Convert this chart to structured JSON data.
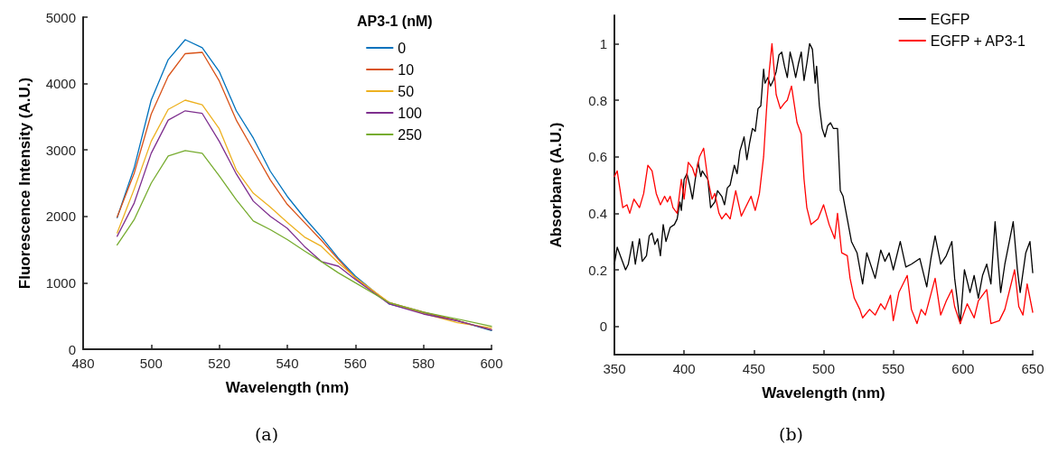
{
  "chart_data": [
    {
      "type": "line",
      "xlabel": "Wavelength (nm)",
      "ylabel": "Fluorescence Intensity (A.U.)",
      "legend_title": "AP3-1 (nM)",
      "annotations": [
        "(a)"
      ],
      "legend": "top right",
      "grid": false,
      "marker": "none",
      "line_style": "solid",
      "xlim": [
        480,
        600
      ],
      "xticks": [
        480,
        500,
        520,
        540,
        560,
        580,
        600
      ],
      "ylim": [
        0,
        5000
      ],
      "yticks": [
        0,
        1000,
        2000,
        3000,
        4000,
        5000
      ],
      "x": [
        490,
        495,
        500,
        505,
        510,
        515,
        520,
        525,
        530,
        535,
        540,
        545,
        550,
        555,
        560,
        570,
        580,
        590,
        600
      ],
      "series": [
        {
          "name": "0",
          "color": "#0072bd",
          "values": [
            1980,
            2730,
            3750,
            4360,
            4660,
            4540,
            4180,
            3590,
            3180,
            2680,
            2300,
            1980,
            1690,
            1370,
            1100,
            680,
            550,
            430,
            280
          ]
        },
        {
          "name": "10",
          "color": "#d95319",
          "values": [
            1990,
            2650,
            3540,
            4110,
            4450,
            4470,
            4040,
            3450,
            3000,
            2550,
            2180,
            1910,
            1640,
            1350,
            1070,
            700,
            560,
            430,
            290
          ]
        },
        {
          "name": "50",
          "color": "#edb120",
          "values": [
            1750,
            2410,
            3130,
            3610,
            3750,
            3680,
            3320,
            2700,
            2350,
            2140,
            1910,
            1690,
            1550,
            1300,
            1080,
            700,
            540,
            400,
            320
          ]
        },
        {
          "name": "100",
          "color": "#7e2f8e",
          "values": [
            1700,
            2200,
            2950,
            3450,
            3590,
            3550,
            3130,
            2640,
            2230,
            2000,
            1820,
            1550,
            1320,
            1250,
            1050,
            680,
            530,
            425,
            295
          ]
        },
        {
          "name": "250",
          "color": "#77ac30",
          "values": [
            1570,
            1950,
            2500,
            2910,
            2990,
            2950,
            2610,
            2250,
            1930,
            1800,
            1650,
            1480,
            1320,
            1150,
            1000,
            700,
            560,
            455,
            345
          ]
        }
      ]
    },
    {
      "type": "line",
      "xlabel": "Wavelength (nm)",
      "ylabel": "Absorbane (A.U.)",
      "annotations": [
        "(b)"
      ],
      "legend": "top right",
      "grid": false,
      "marker": "none",
      "line_style": "solid",
      "xlim": [
        350,
        650
      ],
      "xticks": [
        350,
        400,
        450,
        500,
        550,
        600,
        650
      ],
      "ylim": [
        -0.1,
        1.1
      ],
      "yticks": [
        0,
        0.2,
        0.4,
        0.6,
        0.8,
        1
      ],
      "series": [
        {
          "name": "EGFP",
          "color": "#000000",
          "x": [
            350,
            352,
            355,
            358,
            360,
            363,
            365,
            368,
            370,
            373,
            375,
            377,
            379,
            381,
            383,
            385,
            387,
            390,
            393,
            395,
            397,
            398,
            400,
            402,
            404,
            406,
            408,
            410,
            412,
            413,
            417,
            419,
            422,
            424,
            427,
            429,
            431,
            433,
            436,
            438,
            440,
            443,
            445,
            447,
            449,
            451,
            453,
            455,
            457,
            458,
            460,
            462,
            464,
            466,
            468,
            470,
            472,
            474,
            476,
            478,
            480,
            482,
            484,
            486,
            488,
            490,
            492,
            494,
            495,
            497,
            499,
            501,
            503,
            505,
            507,
            510,
            512,
            514,
            517,
            520,
            522,
            524,
            528,
            531,
            537,
            541,
            544,
            547,
            550,
            555,
            559,
            563,
            569,
            574,
            577,
            580,
            584,
            588,
            592,
            594,
            598,
            601,
            605,
            608,
            611,
            614,
            617,
            620,
            623,
            627,
            630,
            636,
            639,
            641,
            645,
            648,
            650
          ],
          "values": [
            0.22,
            0.28,
            0.24,
            0.2,
            0.22,
            0.3,
            0.22,
            0.31,
            0.23,
            0.25,
            0.32,
            0.33,
            0.29,
            0.31,
            0.25,
            0.36,
            0.3,
            0.35,
            0.36,
            0.38,
            0.44,
            0.41,
            0.52,
            0.54,
            0.5,
            0.45,
            0.52,
            0.58,
            0.53,
            0.55,
            0.52,
            0.42,
            0.44,
            0.48,
            0.46,
            0.43,
            0.49,
            0.5,
            0.57,
            0.54,
            0.62,
            0.67,
            0.59,
            0.65,
            0.7,
            0.69,
            0.77,
            0.78,
            0.91,
            0.86,
            0.88,
            0.85,
            0.87,
            0.9,
            0.96,
            0.97,
            0.92,
            0.88,
            0.97,
            0.93,
            0.88,
            0.93,
            0.97,
            0.87,
            0.93,
            1,
            0.98,
            0.86,
            0.92,
            0.78,
            0.7,
            0.67,
            0.71,
            0.72,
            0.7,
            0.7,
            0.48,
            0.46,
            0.38,
            0.3,
            0.28,
            0.26,
            0.15,
            0.26,
            0.17,
            0.27,
            0.23,
            0.26,
            0.2,
            0.3,
            0.21,
            0.22,
            0.24,
            0.14,
            0.24,
            0.32,
            0.22,
            0.25,
            0.3,
            0.17,
            0.01,
            0.2,
            0.12,
            0.18,
            0.1,
            0.18,
            0.22,
            0.15,
            0.37,
            0.12,
            0.22,
            0.37,
            0.2,
            0.12,
            0.26,
            0.3,
            0.19
          ]
        },
        {
          "name": "EGFP + AP3-1",
          "color": "#ff0000",
          "x": [
            350,
            352,
            356,
            359,
            361,
            364,
            368,
            371,
            374,
            377,
            380,
            383,
            386,
            388,
            390,
            392,
            395,
            398,
            400,
            403,
            406,
            408,
            411,
            414,
            417,
            420,
            422,
            425,
            427,
            430,
            433,
            437,
            441,
            444,
            448,
            451,
            454,
            457,
            459,
            461,
            463,
            466,
            469,
            472,
            474,
            477,
            481,
            484,
            486,
            488,
            491,
            496,
            500,
            504,
            508,
            510,
            513,
            517,
            519,
            522,
            526,
            528,
            533,
            537,
            541,
            544,
            548,
            550,
            554,
            560,
            563,
            567,
            570,
            573,
            580,
            584,
            588,
            592,
            594,
            598,
            603,
            608,
            611,
            617,
            620,
            626,
            630,
            637,
            640,
            643,
            646,
            650
          ],
          "values": [
            0.53,
            0.55,
            0.42,
            0.43,
            0.4,
            0.45,
            0.42,
            0.47,
            0.57,
            0.55,
            0.47,
            0.43,
            0.46,
            0.44,
            0.46,
            0.42,
            0.4,
            0.52,
            0.45,
            0.58,
            0.56,
            0.53,
            0.6,
            0.63,
            0.52,
            0.45,
            0.47,
            0.4,
            0.38,
            0.4,
            0.38,
            0.48,
            0.39,
            0.42,
            0.46,
            0.41,
            0.47,
            0.6,
            0.76,
            0.9,
            1,
            0.82,
            0.77,
            0.79,
            0.8,
            0.85,
            0.72,
            0.68,
            0.52,
            0.42,
            0.36,
            0.38,
            0.43,
            0.36,
            0.31,
            0.4,
            0.26,
            0.25,
            0.17,
            0.1,
            0.06,
            0.03,
            0.06,
            0.04,
            0.08,
            0.06,
            0.11,
            0.02,
            0.12,
            0.18,
            0.06,
            0.01,
            0.06,
            0.04,
            0.17,
            0.04,
            0.09,
            0.13,
            0.07,
            0.01,
            0.08,
            0.03,
            0.09,
            0.13,
            0.01,
            0.02,
            0.06,
            0.2,
            0.07,
            0.04,
            0.15,
            0.05
          ]
        }
      ]
    }
  ]
}
